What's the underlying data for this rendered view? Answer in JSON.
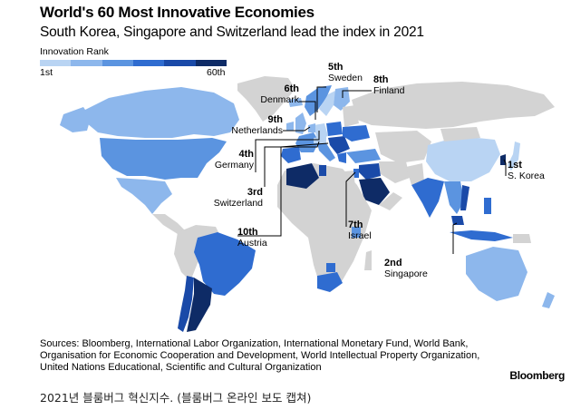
{
  "title": "World's 60 Most Innovative Economies",
  "subtitle": "South Korea, Singapore and Switzerland lead the index in 2021",
  "legend": {
    "label": "Innovation Rank",
    "min_label": "1st",
    "max_label": "60th",
    "colors": [
      "#b9d4f3",
      "#8db7ec",
      "#5b94e0",
      "#2f6cd0",
      "#1a4aa8",
      "#0e2b66"
    ]
  },
  "map_colors": {
    "ocean": "#ffffff",
    "not_ranked": "#d3d3d3"
  },
  "callouts": [
    {
      "rank": "5th",
      "country": "Sweden"
    },
    {
      "rank": "8th",
      "country": "Finland"
    },
    {
      "rank": "6th",
      "country": "Denmark"
    },
    {
      "rank": "9th",
      "country": "Netherlands"
    },
    {
      "rank": "4th",
      "country": "Germany"
    },
    {
      "rank": "3rd",
      "country": "Switzerland"
    },
    {
      "rank": "10th",
      "country": "Austria"
    },
    {
      "rank": "7th",
      "country": "Israel"
    },
    {
      "rank": "1st",
      "country": "S. Korea"
    },
    {
      "rank": "2nd",
      "country": "Singapore"
    }
  ],
  "sources": [
    "Sources: Bloomberg, International Labor Organization, International Monetary Fund, World Bank,",
    "Organisation for Economic Cooperation and Development, World Intellectual Property Organization,",
    "United Nations Educational, Scientific and Cultural Organization"
  ],
  "brand": "Bloomberg",
  "caption": "2021년 블룸버그 혁신지수. (블룸버그 온라인 보도 캡쳐)"
}
